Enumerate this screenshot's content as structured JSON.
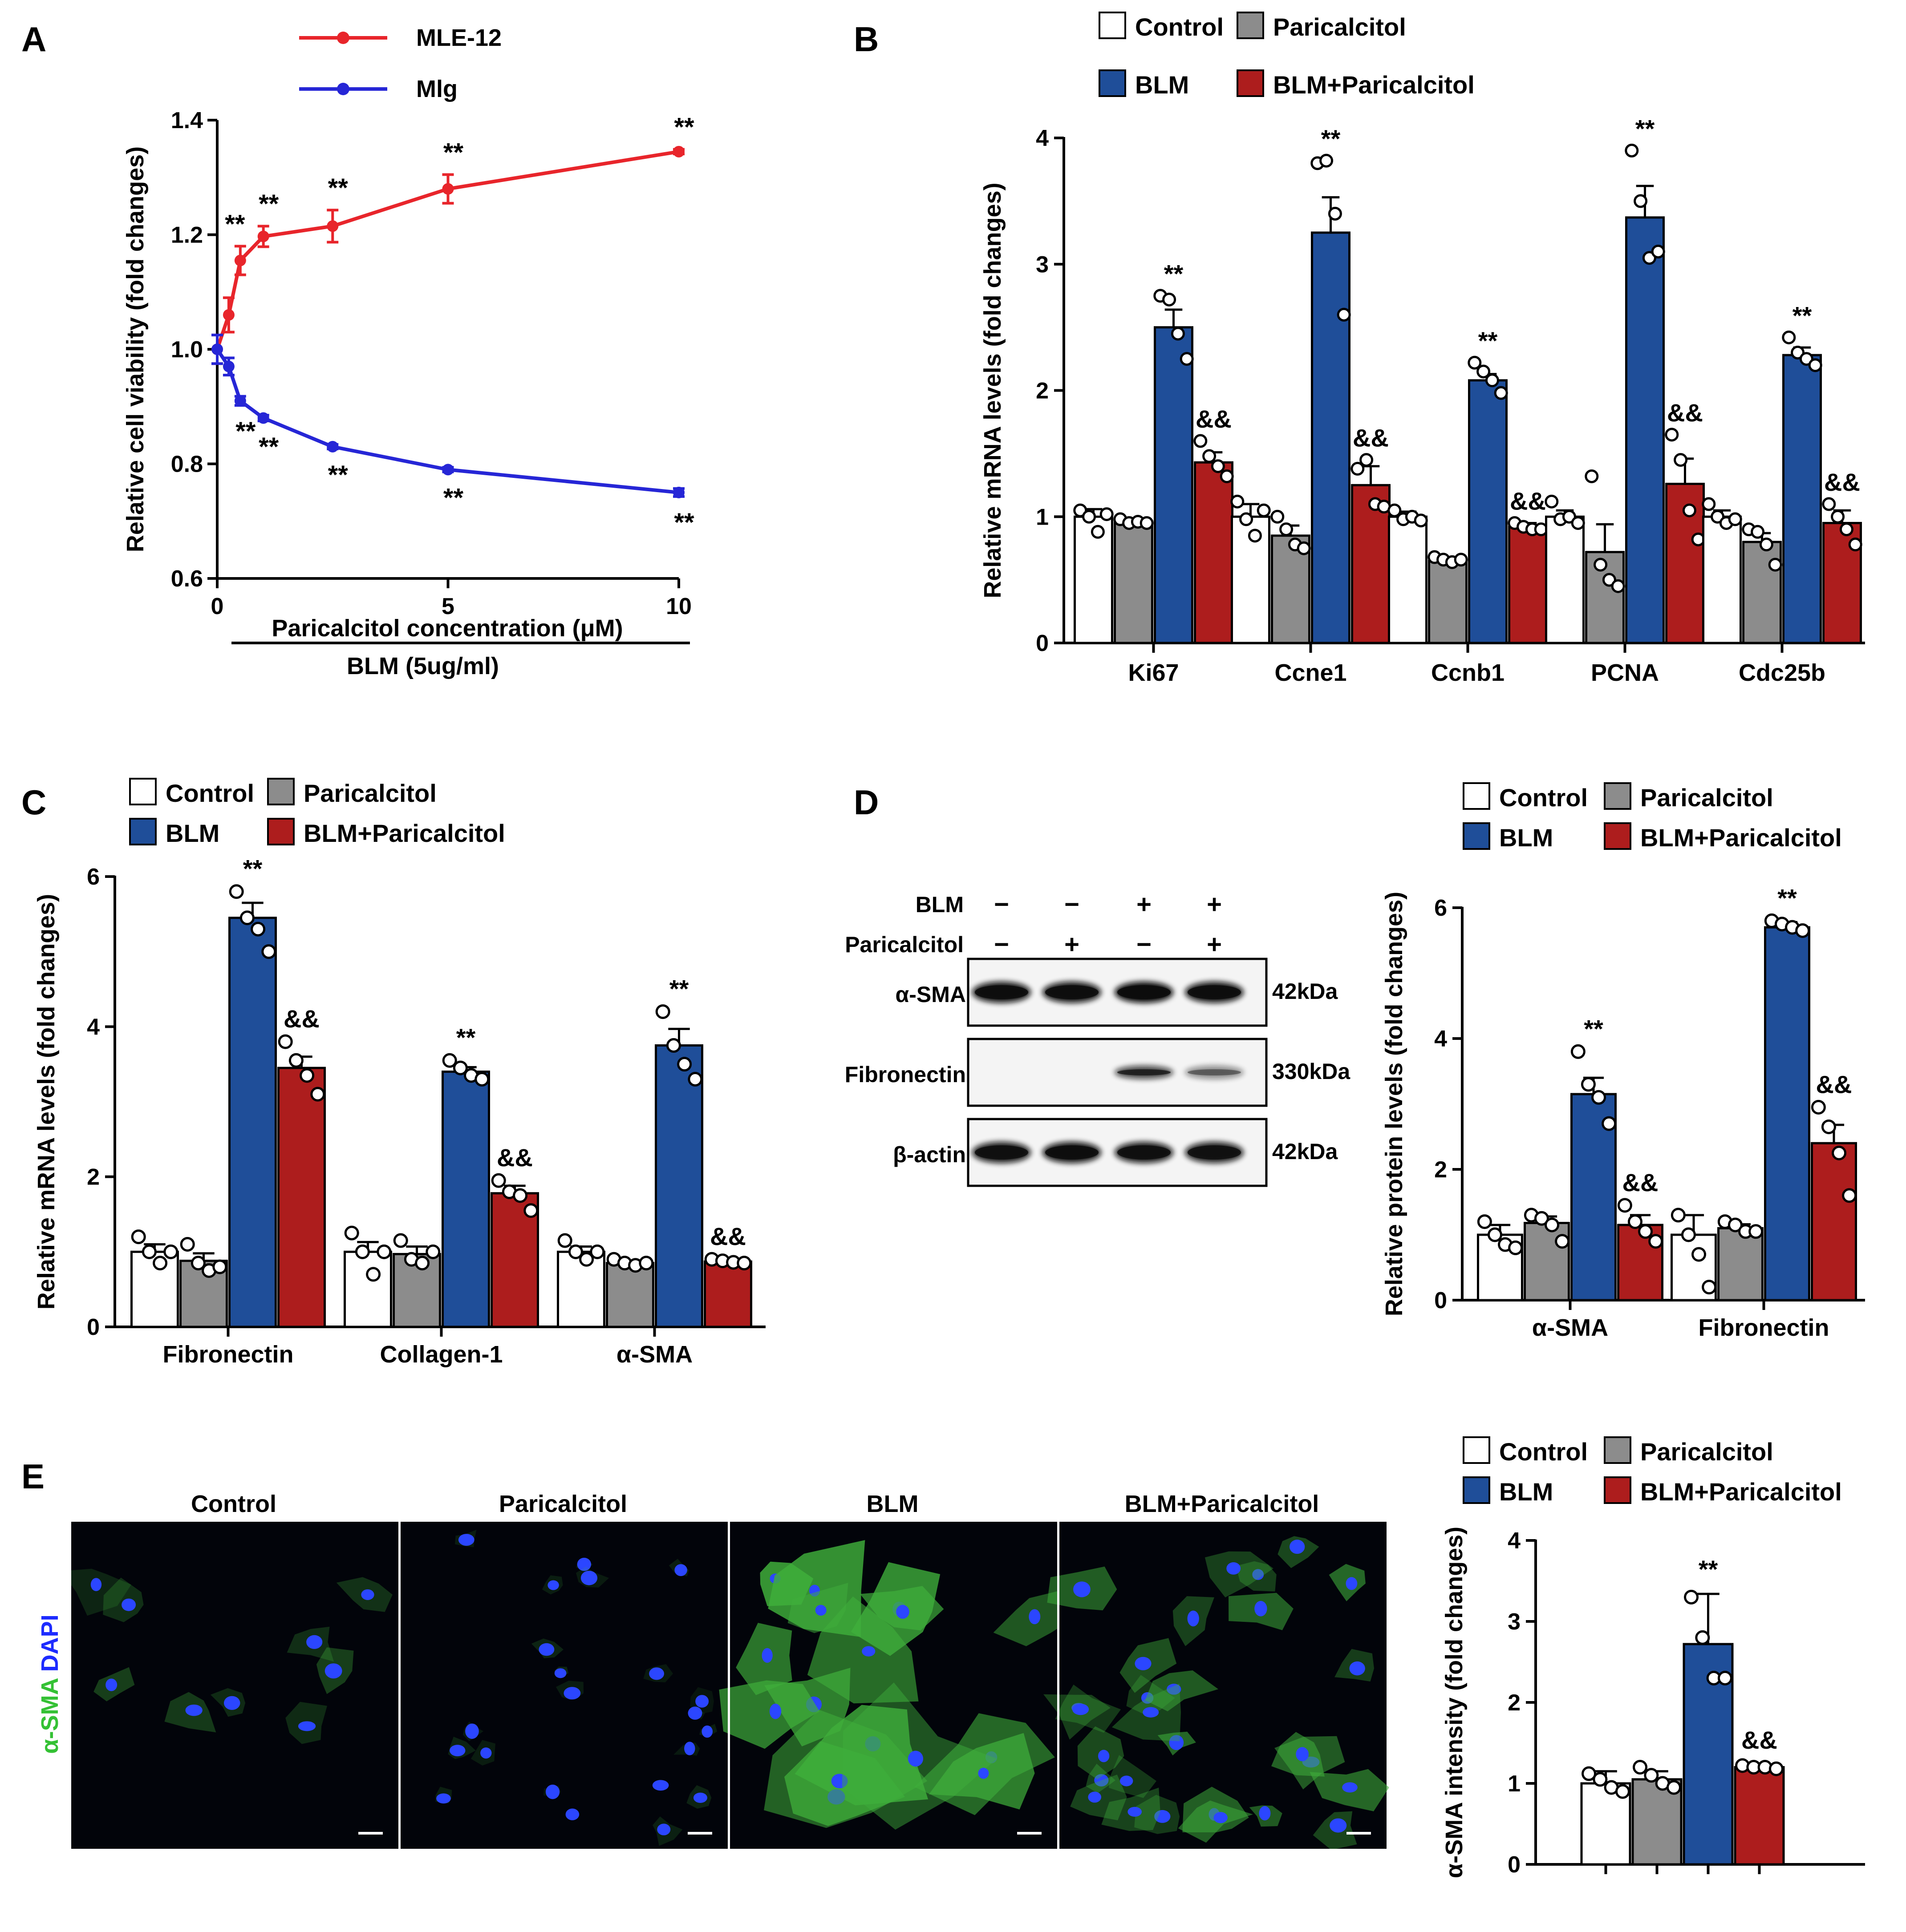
{
  "colors": {
    "control": "#ffffff",
    "paricalcitol": "#8c8c8c",
    "blm": "#1f4e99",
    "blm_paricalcitol": "#ad1d1d",
    "mle12": "#e8252b",
    "mlg": "#2626d6",
    "axis": "#000000",
    "micrograph_bg": "#02040a",
    "actin_green": "#3fae3b",
    "nucleus_blue": "#2b46ff"
  },
  "groups": [
    "Control",
    "Paricalcitol",
    "BLM",
    "BLM+Paricalcitol"
  ],
  "chart_data": [
    {
      "panel": "A",
      "type": "line",
      "ylabel": "Relative cell viability (fold changes)",
      "xlabel": "Paricalcitol concentration (μM)",
      "treatment_label": "BLM (5ug/ml)",
      "xlim": [
        0,
        10
      ],
      "ylim": [
        0.6,
        1.4
      ],
      "xticks": [
        0,
        5,
        10
      ],
      "xtick_labels": [
        "0",
        "5",
        "10"
      ],
      "yticks": [
        0.6,
        0.8,
        1.0,
        1.2,
        1.4
      ],
      "ytick_labels": [
        "0.6",
        "0.8",
        "1.0",
        "1.2",
        "1.4"
      ],
      "series": [
        {
          "name": "MLE-12",
          "x": [
            0,
            0.25,
            0.5,
            1,
            2.5,
            5,
            10
          ],
          "y": [
            1.0,
            1.06,
            1.155,
            1.197,
            1.215,
            1.28,
            1.345
          ],
          "err": [
            0.025,
            0.03,
            0.025,
            0.018,
            0.028,
            0.025,
            0.004
          ],
          "labels": [
            "",
            "",
            "**",
            "**",
            "**",
            "**",
            "**"
          ]
        },
        {
          "name": "Mlg",
          "x": [
            0,
            0.25,
            0.5,
            1,
            2.5,
            5,
            10
          ],
          "y": [
            1.0,
            0.97,
            0.91,
            0.88,
            0.83,
            0.79,
            0.75
          ],
          "err": [
            0.025,
            0.015,
            0.008,
            0.005,
            0.004,
            0.004,
            0.007
          ],
          "labels": [
            "",
            "",
            "**",
            "**",
            "**",
            "**",
            "**"
          ]
        }
      ]
    },
    {
      "panel": "B",
      "type": "bar",
      "ylabel": "Relative mRNA levels (fold changes)",
      "categories": [
        "Ki67",
        "Ccne1",
        "Ccnb1",
        "PCNA",
        "Cdc25b"
      ],
      "ylim": [
        0,
        4
      ],
      "yticks": [
        0,
        1,
        2,
        3,
        4
      ],
      "ytick_labels": [
        "0",
        "1",
        "2",
        "3",
        "4"
      ],
      "series": [
        {
          "name": "Control",
          "values": [
            1.0,
            1.0,
            1.0,
            1.0,
            1.0
          ],
          "err": [
            0.06,
            0.1,
            0.04,
            0.05,
            0.05
          ],
          "points": [
            [
              1.05,
              1.0,
              0.88,
              1.02
            ],
            [
              1.12,
              0.98,
              0.85,
              1.05
            ],
            [
              1.05,
              0.98,
              1.0,
              0.97
            ],
            [
              1.12,
              0.98,
              1.0,
              0.95
            ],
            [
              1.1,
              1.0,
              0.95,
              0.98
            ]
          ],
          "labels": [
            "",
            "",
            "",
            "",
            ""
          ]
        },
        {
          "name": "Paricalcitol",
          "values": [
            0.96,
            0.85,
            0.65,
            0.72,
            0.8
          ],
          "err": [
            0.02,
            0.08,
            0.03,
            0.22,
            0.07
          ],
          "points": [
            [
              0.98,
              0.95,
              0.96,
              0.95
            ],
            [
              1.0,
              0.9,
              0.78,
              0.75
            ],
            [
              0.68,
              0.66,
              0.64,
              0.66
            ],
            [
              1.32,
              0.62,
              0.5,
              0.45
            ],
            [
              0.9,
              0.88,
              0.78,
              0.62
            ]
          ],
          "labels": [
            "",
            "",
            "",
            "",
            ""
          ]
        },
        {
          "name": "BLM",
          "values": [
            2.5,
            3.25,
            2.08,
            3.37,
            2.28
          ],
          "err": [
            0.14,
            0.28,
            0.05,
            0.25,
            0.06
          ],
          "points": [
            [
              2.75,
              2.72,
              2.45,
              2.25
            ],
            [
              3.8,
              3.82,
              3.4,
              2.6
            ],
            [
              2.22,
              2.15,
              2.08,
              1.98
            ],
            [
              3.9,
              3.5,
              3.05,
              3.1
            ],
            [
              2.42,
              2.3,
              2.25,
              2.2
            ]
          ],
          "labels": [
            "**",
            "**",
            "**",
            "**",
            "**"
          ]
        },
        {
          "name": "BLM+Paricalcitol",
          "values": [
            1.43,
            1.25,
            0.92,
            1.26,
            0.95
          ],
          "err": [
            0.08,
            0.15,
            0.03,
            0.2,
            0.1
          ],
          "points": [
            [
              1.6,
              1.48,
              1.4,
              1.32
            ],
            [
              1.38,
              1.45,
              1.1,
              1.08
            ],
            [
              0.95,
              0.92,
              0.9,
              0.9
            ],
            [
              1.65,
              1.45,
              1.05,
              0.82
            ],
            [
              1.1,
              1.0,
              0.9,
              0.78
            ]
          ],
          "labels": [
            "&&",
            "&&",
            "&&",
            "&&",
            "&&"
          ]
        }
      ]
    },
    {
      "panel": "C",
      "type": "bar",
      "ylabel": "Relative mRNA levels (fold changes)",
      "categories": [
        "Fibronectin",
        "Collagen-1",
        "α-SMA"
      ],
      "ylim": [
        0,
        6
      ],
      "yticks": [
        0,
        2,
        4,
        6
      ],
      "ytick_labels": [
        "0",
        "2",
        "4",
        "6"
      ],
      "series": [
        {
          "name": "Control",
          "values": [
            1.0,
            1.0,
            1.0
          ],
          "err": [
            0.1,
            0.13,
            0.07
          ],
          "points": [
            [
              1.2,
              1.0,
              0.85,
              1.0
            ],
            [
              1.25,
              1.0,
              0.7,
              1.0
            ],
            [
              1.15,
              1.0,
              0.9,
              1.0
            ]
          ],
          "labels": [
            "",
            "",
            ""
          ]
        },
        {
          "name": "Paricalcitol",
          "values": [
            0.88,
            0.97,
            0.85
          ],
          "err": [
            0.1,
            0.1,
            0.03
          ],
          "points": [
            [
              1.1,
              0.85,
              0.75,
              0.8
            ],
            [
              1.15,
              0.9,
              0.85,
              1.0
            ],
            [
              0.9,
              0.85,
              0.82,
              0.85
            ]
          ],
          "labels": [
            "",
            "",
            ""
          ]
        },
        {
          "name": "BLM",
          "values": [
            5.45,
            3.4,
            3.75
          ],
          "err": [
            0.2,
            0.06,
            0.22
          ],
          "points": [
            [
              5.8,
              5.45,
              5.3,
              5.0
            ],
            [
              3.55,
              3.45,
              3.35,
              3.3
            ],
            [
              4.2,
              3.75,
              3.5,
              3.3
            ]
          ],
          "labels": [
            "**",
            "**",
            "**"
          ]
        },
        {
          "name": "BLM+Paricalcitol",
          "values": [
            3.45,
            1.78,
            0.87
          ],
          "err": [
            0.15,
            0.1,
            0.02
          ],
          "points": [
            [
              3.8,
              3.55,
              3.35,
              3.1
            ],
            [
              1.95,
              1.8,
              1.75,
              1.55
            ],
            [
              0.9,
              0.88,
              0.86,
              0.85
            ]
          ],
          "labels": [
            "&&",
            "&&",
            "&&"
          ]
        }
      ]
    },
    {
      "panel": "D",
      "type": "bar",
      "ylabel": "Relative protein levels (fold changes)",
      "categories": [
        "α-SMA",
        "Fibronectin"
      ],
      "ylim": [
        0,
        6
      ],
      "yticks": [
        0,
        2,
        4,
        6
      ],
      "ytick_labels": [
        "0",
        "2",
        "4",
        "6"
      ],
      "series": [
        {
          "name": "Control",
          "values": [
            1.0,
            1.0
          ],
          "err": [
            0.15,
            0.3
          ],
          "points": [
            [
              1.2,
              1.0,
              0.85,
              0.8
            ],
            [
              1.3,
              1.0,
              0.7,
              0.2
            ]
          ],
          "labels": [
            "",
            ""
          ]
        },
        {
          "name": "Paricalcitol",
          "values": [
            1.18,
            1.1
          ],
          "err": [
            0.1,
            0.06
          ],
          "points": [
            [
              1.3,
              1.25,
              1.15,
              0.9
            ],
            [
              1.2,
              1.15,
              1.05,
              1.05
            ]
          ],
          "labels": [
            "",
            ""
          ]
        },
        {
          "name": "BLM",
          "values": [
            3.15,
            5.7
          ],
          "err": [
            0.25,
            0.08
          ],
          "points": [
            [
              3.8,
              3.3,
              3.1,
              2.7
            ],
            [
              5.8,
              5.75,
              5.7,
              5.65
            ]
          ],
          "labels": [
            "**",
            "**"
          ]
        },
        {
          "name": "BLM+Paricalcitol",
          "values": [
            1.15,
            2.4
          ],
          "err": [
            0.15,
            0.28
          ],
          "points": [
            [
              1.45,
              1.2,
              1.05,
              0.9
            ],
            [
              2.95,
              2.65,
              2.25,
              1.6
            ]
          ],
          "labels": [
            "&&",
            "&&"
          ]
        }
      ]
    },
    {
      "panel": "E",
      "type": "bar",
      "ylabel": "α-SMA intensity (fold changes)",
      "categories": [
        ""
      ],
      "ylim": [
        0,
        4
      ],
      "yticks": [
        0,
        1,
        2,
        3,
        4
      ],
      "ytick_labels": [
        "0",
        "1",
        "2",
        "3",
        "4"
      ],
      "series": [
        {
          "name": "Control",
          "values": [
            1.0
          ],
          "err": [
            0.15
          ],
          "points": [
            [
              1.12,
              1.05,
              0.95,
              0.9
            ]
          ],
          "labels": [
            ""
          ]
        },
        {
          "name": "Paricalcitol",
          "values": [
            1.05
          ],
          "err": [
            0.1
          ],
          "points": [
            [
              1.2,
              1.1,
              1.0,
              0.95
            ]
          ],
          "labels": [
            ""
          ]
        },
        {
          "name": "BLM",
          "values": [
            2.72
          ],
          "err": [
            0.62
          ],
          "points": [
            [
              3.3,
              2.8,
              2.3,
              2.3
            ]
          ],
          "labels": [
            "**"
          ]
        },
        {
          "name": "BLM+Paricalcitol",
          "values": [
            1.2
          ],
          "err": [
            0.03
          ],
          "points": [
            [
              1.22,
              1.2,
              1.2,
              1.18
            ]
          ],
          "labels": [
            "&&"
          ]
        }
      ]
    }
  ],
  "panel_labels": {
    "A": "A",
    "B": "B",
    "C": "C",
    "D": "D",
    "E": "E"
  },
  "blot": {
    "rows": [
      {
        "label": "BLM",
        "marks": [
          "−",
          "−",
          "+",
          "+"
        ]
      },
      {
        "label": "Paricalcitol",
        "marks": [
          "−",
          "+",
          "−",
          "+"
        ]
      }
    ],
    "bands": [
      {
        "protein": "α-SMA",
        "size": "42kDa",
        "intensity": [
          0.95,
          0.95,
          1.0,
          0.95
        ]
      },
      {
        "protein": "Fibronectin",
        "size": "330kDa",
        "intensity": [
          0.0,
          0.0,
          0.75,
          0.45
        ]
      },
      {
        "protein": "β-actin",
        "size": "42kDa",
        "intensity": [
          0.92,
          0.95,
          0.92,
          0.9
        ]
      }
    ]
  },
  "micrographs": {
    "titles": [
      "Control",
      "Paricalcitol",
      "BLM",
      "BLM+Paricalcitol"
    ],
    "stain_label_green": "α-SMA",
    "stain_label_blue": "DAPI"
  }
}
